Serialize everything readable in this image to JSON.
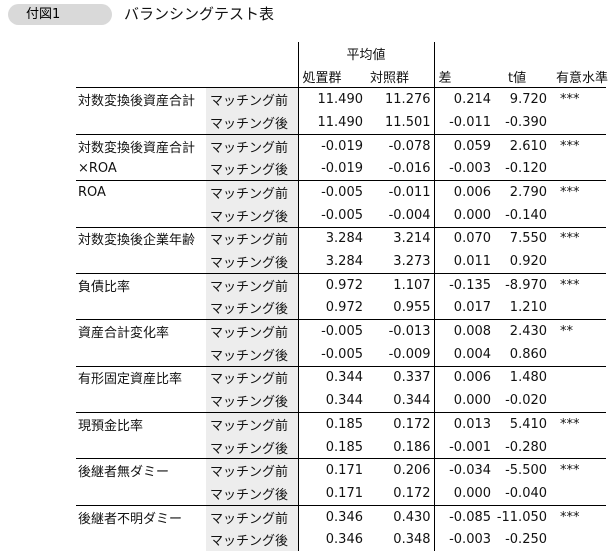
{
  "header": {
    "badge": "付図1",
    "title": "バランシングテスト表"
  },
  "table": {
    "columns": {
      "mean_group": "平均値",
      "treated": "処置群",
      "control": "対照群",
      "diff": "差",
      "t": "t値",
      "sig": "有意水準"
    },
    "rows": [
      {
        "label": "対数変換後資産合計",
        "label2": "",
        "r1": {
          "phase": "マッチング前",
          "treated": "11.490",
          "control": "11.276",
          "diff": "0.214",
          "t": "9.720",
          "sig": "***"
        },
        "r2": {
          "phase": "マッチング後",
          "treated": "11.490",
          "control": "11.501",
          "diff": "-0.011",
          "t": "-0.390",
          "sig": ""
        }
      },
      {
        "label": "対数変換後資産合計",
        "label2": "×ROA",
        "r1": {
          "phase": "マッチング前",
          "treated": "-0.019",
          "control": "-0.078",
          "diff": "0.059",
          "t": "2.610",
          "sig": "***"
        },
        "r2": {
          "phase": "マッチング後",
          "treated": "-0.019",
          "control": "-0.016",
          "diff": "-0.003",
          "t": "-0.120",
          "sig": ""
        }
      },
      {
        "label": "ROA",
        "label2": "",
        "r1": {
          "phase": "マッチング前",
          "treated": "-0.005",
          "control": "-0.011",
          "diff": "0.006",
          "t": "2.790",
          "sig": "***"
        },
        "r2": {
          "phase": "マッチング後",
          "treated": "-0.005",
          "control": "-0.004",
          "diff": "0.000",
          "t": "-0.140",
          "sig": ""
        }
      },
      {
        "label": "対数変換後企業年齢",
        "label2": "",
        "r1": {
          "phase": "マッチング前",
          "treated": "3.284",
          "control": "3.214",
          "diff": "0.070",
          "t": "7.550",
          "sig": "***"
        },
        "r2": {
          "phase": "マッチング後",
          "treated": "3.284",
          "control": "3.273",
          "diff": "0.011",
          "t": "0.920",
          "sig": ""
        }
      },
      {
        "label": "負債比率",
        "label2": "",
        "r1": {
          "phase": "マッチング前",
          "treated": "0.972",
          "control": "1.107",
          "diff": "-0.135",
          "t": "-8.970",
          "sig": "***"
        },
        "r2": {
          "phase": "マッチング後",
          "treated": "0.972",
          "control": "0.955",
          "diff": "0.017",
          "t": "1.210",
          "sig": ""
        }
      },
      {
        "label": "資産合計変化率",
        "label2": "",
        "r1": {
          "phase": "マッチング前",
          "treated": "-0.005",
          "control": "-0.013",
          "diff": "0.008",
          "t": "2.430",
          "sig": "**"
        },
        "r2": {
          "phase": "マッチング後",
          "treated": "-0.005",
          "control": "-0.009",
          "diff": "0.004",
          "t": "0.860",
          "sig": ""
        }
      },
      {
        "label": "有形固定資産比率",
        "label2": "",
        "r1": {
          "phase": "マッチング前",
          "treated": "0.344",
          "control": "0.337",
          "diff": "0.006",
          "t": "1.480",
          "sig": ""
        },
        "r2": {
          "phase": "マッチング後",
          "treated": "0.344",
          "control": "0.344",
          "diff": "0.000",
          "t": "-0.020",
          "sig": ""
        }
      },
      {
        "label": "現預金比率",
        "label2": "",
        "r1": {
          "phase": "マッチング前",
          "treated": "0.185",
          "control": "0.172",
          "diff": "0.013",
          "t": "5.410",
          "sig": "***"
        },
        "r2": {
          "phase": "マッチング後",
          "treated": "0.185",
          "control": "0.186",
          "diff": "-0.001",
          "t": "-0.280",
          "sig": ""
        }
      },
      {
        "label": "後継者無ダミー",
        "label2": "",
        "r1": {
          "phase": "マッチング前",
          "treated": "0.171",
          "control": "0.206",
          "diff": "-0.034",
          "t": "-5.500",
          "sig": "***"
        },
        "r2": {
          "phase": "マッチング後",
          "treated": "0.171",
          "control": "0.172",
          "diff": "0.000",
          "t": "-0.040",
          "sig": ""
        }
      },
      {
        "label": "後継者不明ダミー",
        "label2": "",
        "r1": {
          "phase": "マッチング前",
          "treated": "0.346",
          "control": "0.430",
          "diff": "-0.085",
          "t": "-11.050",
          "sig": "***"
        },
        "r2": {
          "phase": "マッチング後",
          "treated": "0.346",
          "control": "0.348",
          "diff": "-0.003",
          "t": "-0.250",
          "sig": ""
        }
      }
    ]
  }
}
